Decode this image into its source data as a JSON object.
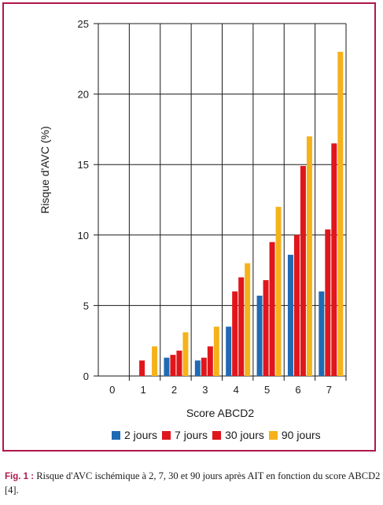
{
  "chart_data": {
    "type": "bar",
    "xlabel": "Score ABCD2",
    "ylabel": "Risque d'AVC (%)",
    "ylim": [
      0,
      25
    ],
    "yticks": [
      0,
      5,
      10,
      15,
      20,
      25
    ],
    "categories": [
      "0",
      "1",
      "2",
      "3",
      "4",
      "5",
      "6",
      "7"
    ],
    "grid": "vertical lines at category boundaries, horizontal lines at y ticks",
    "legend_position": "bottom",
    "series": [
      {
        "name": "2 jours",
        "color": "#1f6ab5",
        "values": [
          0,
          0,
          1.3,
          1.1,
          3.5,
          5.7,
          8.6,
          6.0
        ]
      },
      {
        "name": "7 jours",
        "color": "#e0161b",
        "values": [
          0,
          1.1,
          1.5,
          1.3,
          6.0,
          6.8,
          10.0,
          10.4
        ]
      },
      {
        "name": "30 jours",
        "color": "#e0161b",
        "values": [
          0,
          0,
          1.8,
          2.1,
          7.0,
          9.5,
          14.9,
          16.5
        ]
      },
      {
        "name": "90 jours",
        "color": "#f6b21a",
        "values": [
          0,
          2.1,
          3.1,
          3.5,
          8.0,
          12.0,
          17.0,
          23.0
        ]
      }
    ]
  },
  "caption": {
    "label": "Fig. 1 :",
    "text": "Risque d'AVC ischémique à 2, 7, 30 et 90 jours après AIT en fonction du score ABCD2 [4]."
  }
}
